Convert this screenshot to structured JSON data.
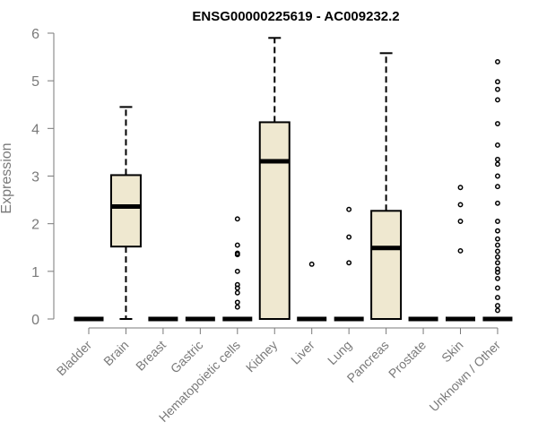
{
  "chart_data": {
    "type": "boxplot",
    "title": "ENSG00000225619 - AC009232.2",
    "ylabel": "Expression",
    "xlabel": "",
    "ylim": [
      0,
      6
    ],
    "yticks": [
      0,
      1,
      2,
      3,
      4,
      5,
      6
    ],
    "box_fill": "#EFE8D0",
    "categories": [
      "Bladder",
      "Brain",
      "Breast",
      "Gastric",
      "Hematopoietic cells",
      "Kidney",
      "Liver",
      "Lung",
      "Pancreas",
      "Prostate",
      "Skin",
      "Unknown / Other"
    ],
    "boxes": [
      {
        "q1": 0,
        "median": 0,
        "q3": 0,
        "whisker_low": 0,
        "whisker_high": 0,
        "outliers": []
      },
      {
        "q1": 1.52,
        "median": 2.36,
        "q3": 3.02,
        "whisker_low": 0,
        "whisker_high": 4.45,
        "outliers": []
      },
      {
        "q1": 0,
        "median": 0,
        "q3": 0,
        "whisker_low": 0,
        "whisker_high": 0,
        "outliers": []
      },
      {
        "q1": 0,
        "median": 0,
        "q3": 0,
        "whisker_low": 0,
        "whisker_high": 0,
        "outliers": []
      },
      {
        "q1": 0,
        "median": 0,
        "q3": 0,
        "whisker_low": 0,
        "whisker_high": 0,
        "outliers": [
          2.1,
          1.55,
          1.38,
          1.35,
          1.0,
          0.72,
          0.65,
          0.55,
          0.35,
          0.25
        ]
      },
      {
        "q1": 0,
        "median": 3.31,
        "q3": 4.13,
        "whisker_low": 0,
        "whisker_high": 5.9,
        "outliers": []
      },
      {
        "q1": 0,
        "median": 0,
        "q3": 0,
        "whisker_low": 0,
        "whisker_high": 0,
        "outliers": [
          1.15
        ]
      },
      {
        "q1": 0,
        "median": 0,
        "q3": 0,
        "whisker_low": 0,
        "whisker_high": 0,
        "outliers": [
          2.3,
          1.72,
          1.18
        ]
      },
      {
        "q1": 0,
        "median": 1.49,
        "q3": 2.27,
        "whisker_low": 0,
        "whisker_high": 5.58,
        "outliers": []
      },
      {
        "q1": 0,
        "median": 0,
        "q3": 0,
        "whisker_low": 0,
        "whisker_high": 0,
        "outliers": []
      },
      {
        "q1": 0,
        "median": 0,
        "q3": 0,
        "whisker_low": 0,
        "whisker_high": 0,
        "outliers": [
          2.76,
          2.4,
          2.05,
          1.43
        ]
      },
      {
        "q1": 0,
        "median": 0,
        "q3": 0,
        "whisker_low": 0,
        "whisker_high": 0,
        "outliers": [
          5.4,
          4.98,
          4.82,
          4.6,
          4.1,
          3.65,
          3.35,
          3.25,
          3.0,
          2.78,
          2.43,
          2.05,
          1.85,
          1.68,
          1.55,
          1.42,
          1.3,
          1.18,
          1.05,
          0.98,
          0.85,
          0.65,
          0.45,
          0.28,
          0.18
        ]
      }
    ]
  }
}
